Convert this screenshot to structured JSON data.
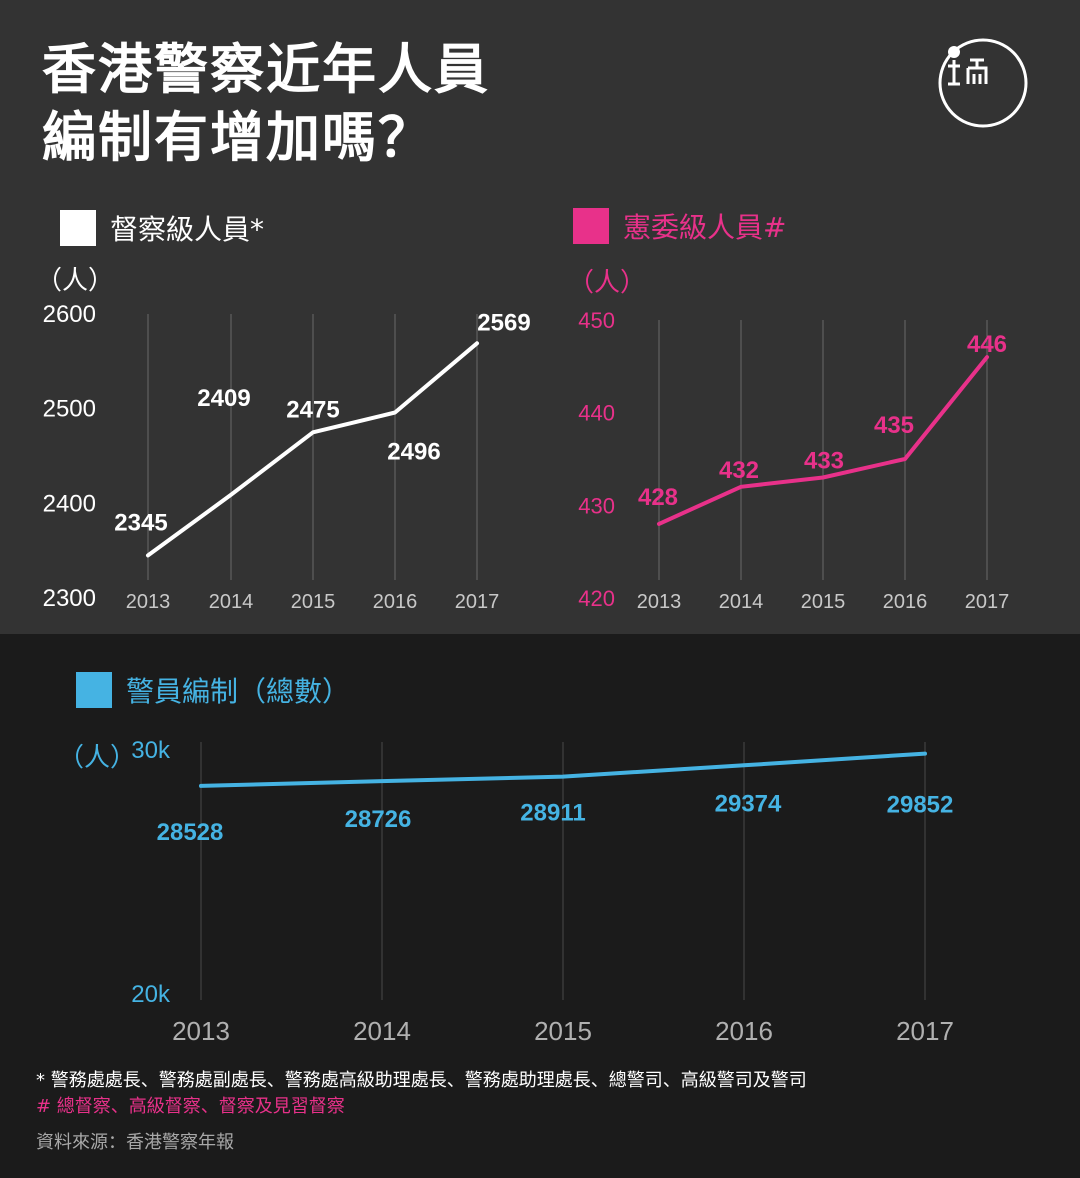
{
  "title": {
    "line1": "香港警察近年人員",
    "line2": "編制有增加嗎？"
  },
  "colors": {
    "white": "#ffffff",
    "pink": "#e8318a",
    "blue": "#45b3e3",
    "grid": "#6a6a6a",
    "grid_dark": "#4a4a4a",
    "tick_gray": "#c8c8c8",
    "top_bg": "#333333",
    "bottom_bg": "#1b1b1b"
  },
  "logo_icon": "initium-logo-icon",
  "charts": {
    "superintendent": {
      "legend": "督察級人員*",
      "unit": "（人）"
    },
    "inspector": {
      "legend": "憲委級人員#",
      "unit": "（人）"
    },
    "total": {
      "legend": "警員編制（總數）",
      "unit": "（人）"
    }
  },
  "chart_data": [
    {
      "type": "line",
      "title": "督察級人員*",
      "ylabel": "（人）",
      "x": [
        "2013",
        "2014",
        "2015",
        "2016",
        "2017"
      ],
      "series": [
        {
          "name": "督察級人員*",
          "values": [
            2345,
            2409,
            2475,
            2496,
            2569
          ]
        }
      ],
      "yticks": [
        "2300",
        "2400",
        "2500",
        "2600"
      ],
      "ylim": [
        2300,
        2600
      ],
      "grid": "vertical"
    },
    {
      "type": "line",
      "title": "憲委級人員#",
      "ylabel": "（人）",
      "x": [
        "2013",
        "2014",
        "2015",
        "2016",
        "2017"
      ],
      "series": [
        {
          "name": "憲委級人員#",
          "values": [
            428,
            432,
            433,
            435,
            446
          ]
        }
      ],
      "yticks": [
        "420",
        "430",
        "440",
        "450"
      ],
      "ylim": [
        420,
        450
      ],
      "grid": "vertical"
    },
    {
      "type": "line",
      "title": "警員編制（總數）",
      "ylabel": "（人）",
      "x": [
        "2013",
        "2014",
        "2015",
        "2016",
        "2017"
      ],
      "series": [
        {
          "name": "警員編制（總數）",
          "values": [
            28528,
            28726,
            28911,
            29374,
            29852
          ]
        }
      ],
      "yticks": [
        "20k",
        "30k"
      ],
      "ylim": [
        20000,
        30000
      ],
      "grid": "vertical"
    }
  ],
  "notes": {
    "note1": "*  警務處處長、警務處副處長、警務處高級助理處長、警務處助理處長、總警司、高級警司及警司",
    "note2": "# 總督察、高級督察、督察及見習督察",
    "source": "資料來源：香港警察年報"
  }
}
